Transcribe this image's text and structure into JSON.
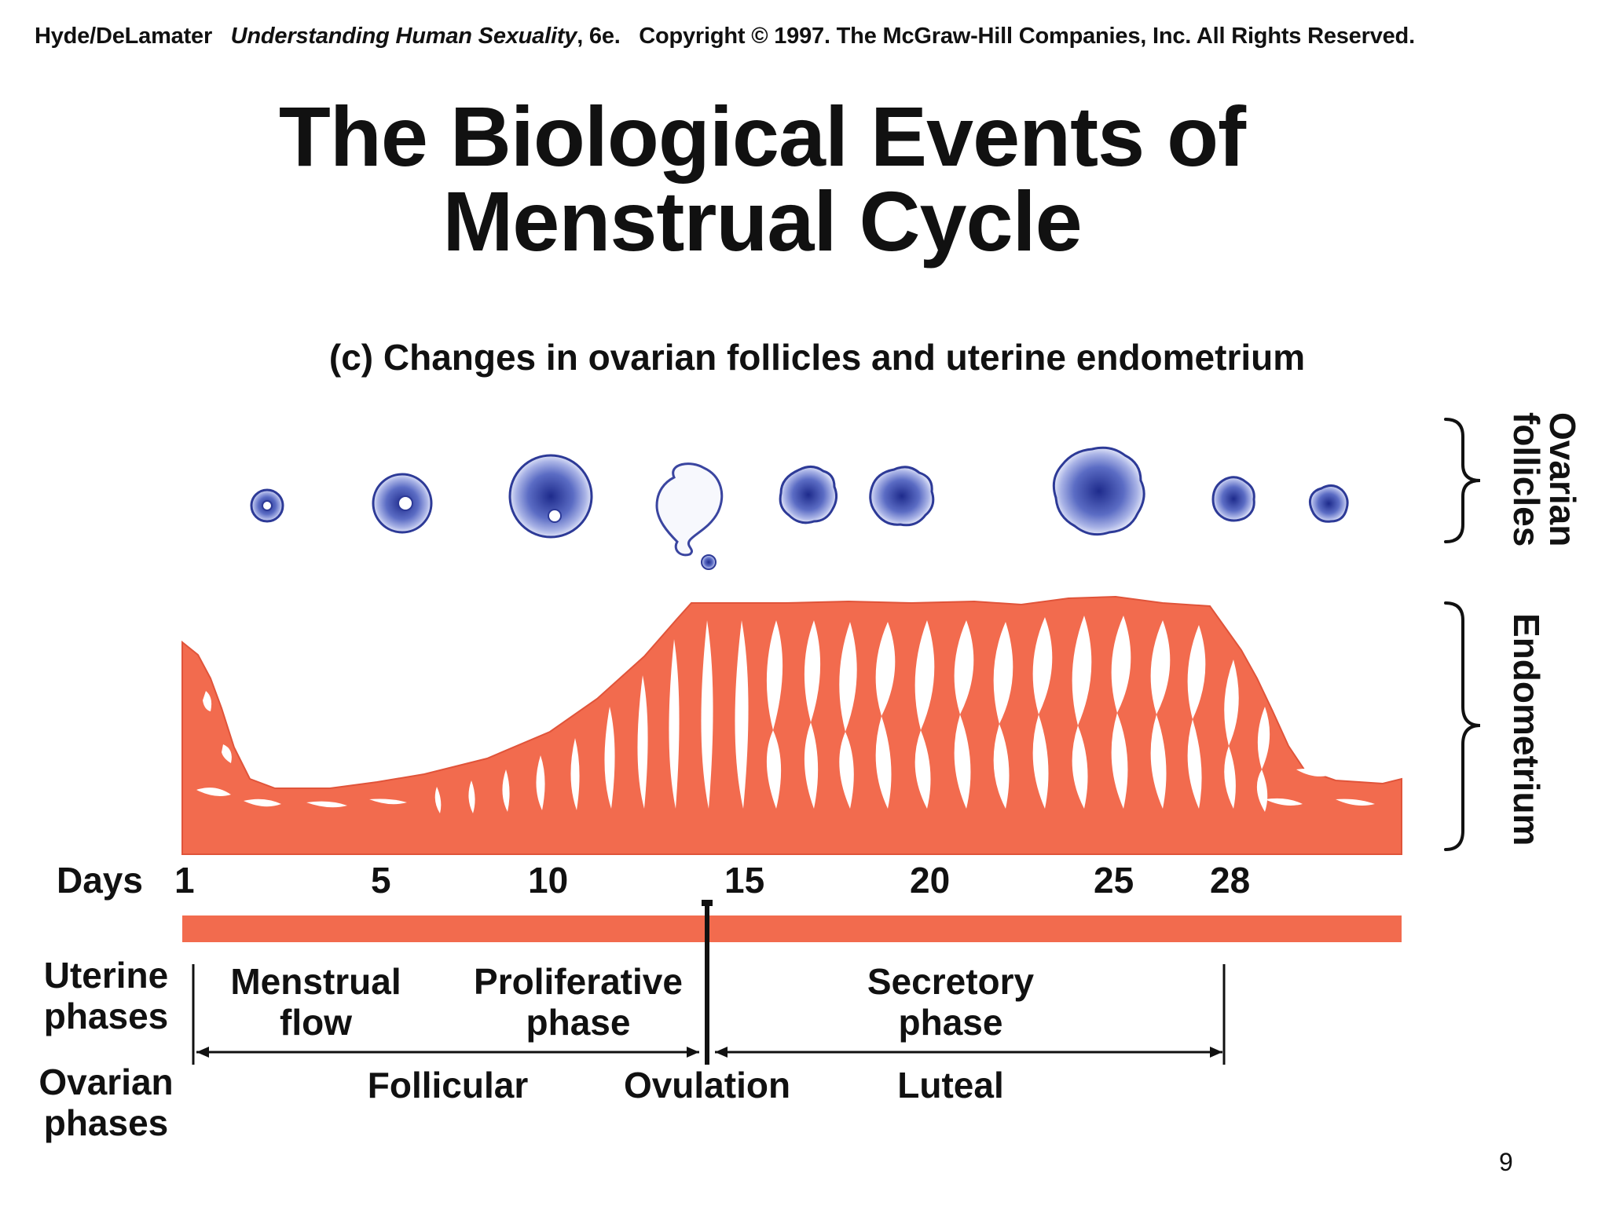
{
  "header": {
    "authors": "Hyde/DeLamater",
    "book_title": "Understanding Human Sexuality",
    "edition": ", 6e.",
    "copyright": "Copyright © 1997. The McGraw-Hill Companies, Inc. All Rights Reserved."
  },
  "title_line1": "The Biological Events of",
  "title_line2": "Menstrual Cycle",
  "subtitle": "(c) Changes in ovarian follicles and uterine endometrium",
  "right_labels": {
    "follicles_line1": "Ovarian",
    "follicles_line2": "follicles",
    "endometrium": "Endometrium"
  },
  "days": {
    "label": "Days",
    "ticks": [
      "1",
      "5",
      "10",
      "15",
      "20",
      "25",
      "28"
    ]
  },
  "uterine": {
    "label_line1": "Uterine",
    "label_line2": "phases",
    "menstrual_line1": "Menstrual",
    "menstrual_line2": "flow",
    "proliferative_line1": "Proliferative",
    "proliferative_line2": "phase",
    "secretory_line1": "Secretory",
    "secretory_line2": "phase"
  },
  "ovarian": {
    "label_line1": "Ovarian",
    "label_line2": "phases",
    "follicular": "Follicular",
    "ovulation": "Ovulation",
    "luteal": "Luteal"
  },
  "page_number": "9",
  "colors": {
    "endometrium": "#f26b4e",
    "follicle": "#3646a8",
    "ink": "#111111"
  }
}
